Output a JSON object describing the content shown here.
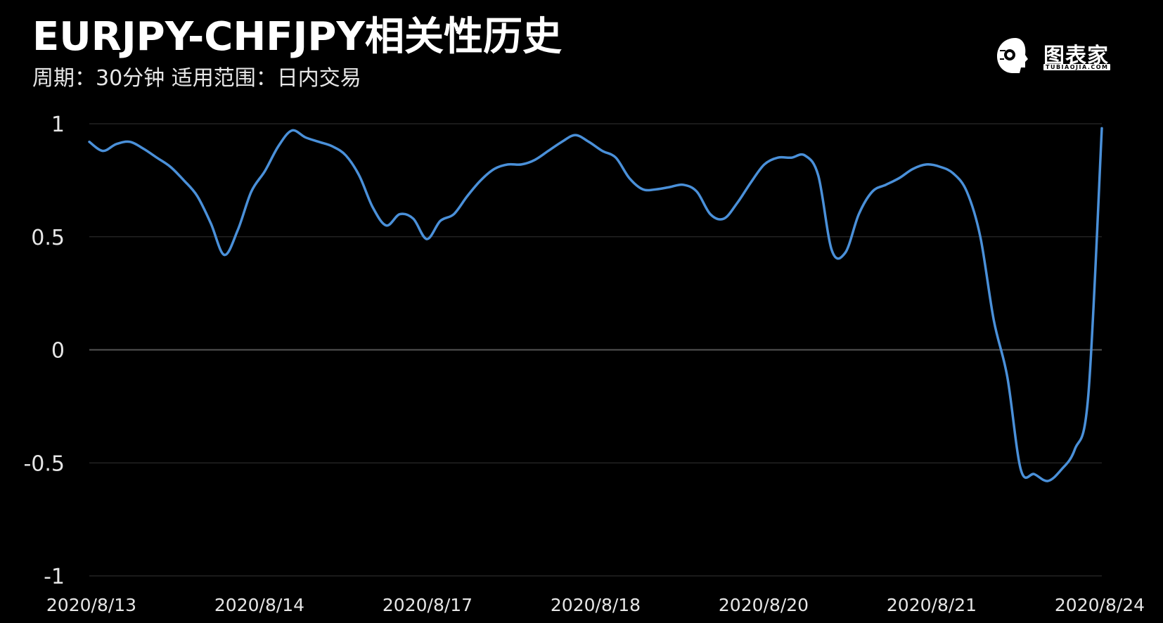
{
  "header": {
    "title": "EURJPY-CHFJPY相关性历史",
    "subtitle": "周期：30分钟  适用范围：日内交易"
  },
  "logo": {
    "icon": "robot-head-icon",
    "text": "图表家",
    "subtext": "TUBIAOJIA.COM"
  },
  "colors": {
    "background": "#000000",
    "line": "#4a90d9",
    "grid": "#333333",
    "zero_line": "#555555",
    "text": "#e6e6e6"
  },
  "chart_data": {
    "type": "line",
    "title": "EURJPY-CHFJPY相关性历史",
    "xlabel": "",
    "ylabel": "",
    "ylim": [
      -1,
      1
    ],
    "yticks": [
      "1",
      "0.5",
      "0",
      "-0.5",
      "-1"
    ],
    "ytick_values": [
      1,
      0.5,
      0,
      -0.5,
      -1
    ],
    "xticks": [
      "2020/8/13",
      "2020/8/14",
      "2020/8/17",
      "2020/8/18",
      "2020/8/20",
      "2020/8/21",
      "2020/8/24"
    ],
    "grid": true,
    "x_index_range": [
      0,
      300
    ],
    "series": [
      {
        "x": [
          0,
          4,
          8,
          12,
          16,
          20,
          24,
          28,
          32,
          36,
          40,
          44,
          48,
          52,
          56,
          60,
          64,
          68,
          72,
          76,
          80,
          84,
          88,
          92,
          96,
          100,
          104,
          108,
          112,
          116,
          120,
          124,
          128,
          132,
          136,
          140,
          144,
          148,
          152,
          156,
          160,
          164,
          168,
          172,
          176,
          180,
          184,
          188,
          192,
          196,
          200,
          204,
          208,
          212,
          216,
          220,
          224,
          228,
          232,
          236,
          240,
          244,
          248,
          252,
          256,
          260,
          264,
          268,
          272,
          276,
          280,
          284,
          288,
          292,
          296,
          300
        ],
        "values": [
          0.92,
          0.88,
          0.91,
          0.92,
          0.89,
          0.85,
          0.81,
          0.75,
          0.68,
          0.56,
          0.42,
          0.53,
          0.7,
          0.79,
          0.9,
          0.97,
          0.94,
          0.92,
          0.9,
          0.86,
          0.77,
          0.63,
          0.55,
          0.6,
          0.58,
          0.49,
          0.57,
          0.6,
          0.68,
          0.75,
          0.8,
          0.82,
          0.82,
          0.84,
          0.88,
          0.92,
          0.95,
          0.92,
          0.88,
          0.85,
          0.76,
          0.71,
          0.71,
          0.72,
          0.73,
          0.7,
          0.6,
          0.58,
          0.65,
          0.74,
          0.82,
          0.85,
          0.85,
          0.86,
          0.77,
          0.44,
          0.43,
          0.6,
          0.7,
          0.73,
          0.76,
          0.8,
          0.82,
          0.81,
          0.78,
          0.7,
          0.5,
          0.13,
          -0.12,
          -0.53,
          -0.55,
          -0.58,
          -0.53,
          -0.44,
          -0.2,
          0.98
        ]
      }
    ]
  }
}
